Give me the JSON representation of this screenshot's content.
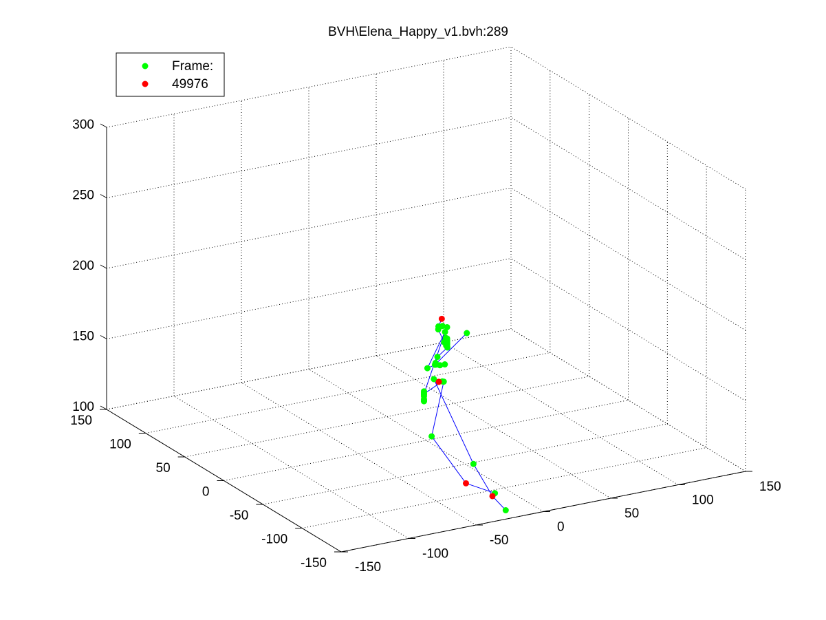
{
  "chart_data": {
    "type": "scatter",
    "title": "BVH\\Elena_Happy_v1.bvh:289",
    "axes": {
      "x": {
        "range": [
          -150,
          150
        ],
        "ticks": [
          -150,
          -100,
          -50,
          0,
          50,
          100,
          150
        ],
        "tick_labels": [
          "-150",
          "-100",
          "-50",
          "0",
          "50",
          "100",
          "150"
        ]
      },
      "y": {
        "range": [
          -150,
          150
        ],
        "ticks": [
          -150,
          -100,
          -50,
          0,
          50,
          100,
          150
        ],
        "tick_labels": [
          "-150",
          "-100",
          "-50",
          "0",
          "50",
          "100",
          "150"
        ]
      },
      "z": {
        "range": [
          100,
          300
        ],
        "ticks": [
          100,
          150,
          200,
          250,
          300
        ],
        "tick_labels": [
          "100",
          "150",
          "200",
          "250",
          "300"
        ]
      },
      "grid": true,
      "projection": "3d-perspective"
    },
    "legend": {
      "placement": "top-left",
      "entries": [
        {
          "label": "Frame:",
          "color": "#00ff00"
        },
        {
          "label": "49976",
          "color": "#ff0000"
        }
      ]
    },
    "series": [
      {
        "color": "#00ff00",
        "points": [
          [
            27.5,
            31.6,
            164.9
          ],
          [
            30.9,
            26.4,
            165.5
          ],
          [
            26.8,
            30.6,
            163.3
          ],
          [
            29.5,
            29.9,
            165.4
          ],
          [
            33.8,
            34.0,
            159.0
          ],
          [
            27.5,
            24.4,
            156.2
          ],
          [
            60.4,
            52.0,
            147.1
          ],
          [
            31.2,
            26.5,
            151.0
          ],
          [
            32.7,
            30.7,
            150.7
          ],
          [
            34.6,
            34.5,
            154.5
          ],
          [
            37.2,
            37.2,
            152.6
          ],
          [
            37.2,
            37.2,
            151.3
          ],
          [
            37.2,
            37.2,
            150.7
          ],
          [
            37.2,
            37.2,
            149.7
          ],
          [
            37.2,
            37.2,
            148.9
          ],
          [
            37.2,
            37.2,
            148.2
          ],
          [
            27.8,
            33.4,
            142.7
          ],
          [
            21.8,
            25.5,
            142.2
          ],
          [
            27.2,
            29.1,
            138.3
          ],
          [
            26.3,
            32.0,
            138.0
          ],
          [
            29.4,
            26.7,
            139.3
          ],
          [
            2.9,
            3.3,
            149.5
          ],
          [
            14.1,
            12.9,
            146.6
          ],
          [
            -12.1,
            -18.2,
            143.2
          ],
          [
            -12.1,
            -18.2,
            142.2
          ],
          [
            -12.1,
            -18.2,
            141.4
          ],
          [
            -12.1,
            -18.2,
            140.9
          ],
          [
            -12.1,
            -18.2,
            139.8
          ],
          [
            -12.1,
            -18.2,
            137.6
          ],
          [
            -12.1,
            -18.2,
            136.6
          ],
          [
            -12.1,
            -18.2,
            136.2
          ],
          [
            26.5,
            24.9,
            128.4
          ],
          [
            25.3,
            33.6,
            127.3
          ],
          [
            29.3,
            27.9,
            126.7
          ],
          [
            38.8,
            6.3,
            73.8
          ],
          [
            39.8,
            61.5,
            74.6
          ],
          [
            64.6,
            9.5,
            35.0
          ],
          [
            77.1,
            44.9,
            32.8
          ]
        ]
      },
      {
        "color": "#ff0000",
        "points": [
          [
            31.2,
            33.7,
            168.9
          ],
          [
            25.8,
            28.2,
            127.1
          ],
          [
            64.2,
            25.8,
            39.6
          ],
          [
            61.6,
            55.2,
            39.3
          ]
        ]
      }
    ]
  }
}
